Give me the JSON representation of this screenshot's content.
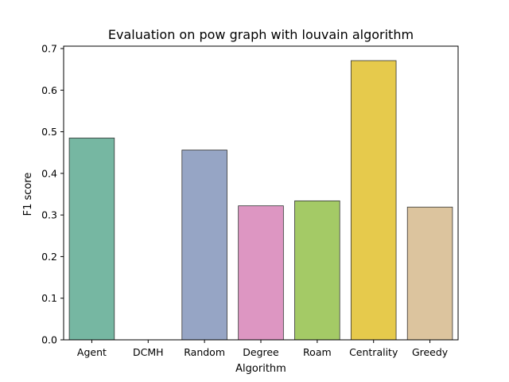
{
  "chart_data": {
    "type": "bar",
    "title": "Evaluation on pow graph with louvain algorithm",
    "xlabel": "Algorithm",
    "ylabel": "F1 score",
    "categories": [
      "Agent",
      "DCMH",
      "Random",
      "Degree",
      "Roam",
      "Centrality",
      "Greedy"
    ],
    "values": [
      0.485,
      0.0,
      0.456,
      0.322,
      0.334,
      0.671,
      0.319
    ],
    "ylim": [
      0,
      0.7
    ],
    "yticks": [
      0.0,
      0.1,
      0.2,
      0.3,
      0.4,
      0.5,
      0.6,
      0.7
    ],
    "ytick_labels": [
      "0.0",
      "0.1",
      "0.2",
      "0.3",
      "0.4",
      "0.5",
      "0.6",
      "0.7"
    ],
    "colors": [
      "#76b7a2",
      "#fc8d62",
      "#96a5c5",
      "#dd96c2",
      "#a4ca66",
      "#e6ca4c",
      "#dcc49e"
    ],
    "grid": false,
    "legend": "none"
  }
}
